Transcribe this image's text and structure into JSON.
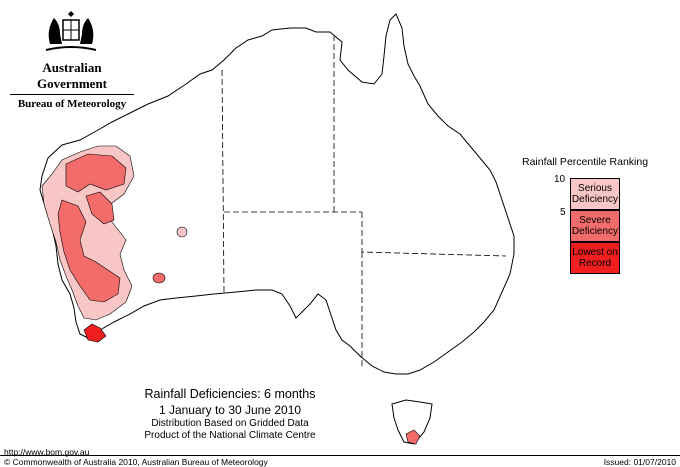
{
  "header": {
    "agency_line1": "Australian Government",
    "agency_line2": "Bureau of Meteorology"
  },
  "legend": {
    "title": "Rainfall Percentile Ranking",
    "tick_top": "10",
    "tick_mid": "5",
    "categories": [
      {
        "label_line1": "Serious",
        "label_line2": "Deficiency",
        "color": "#f9c6c6"
      },
      {
        "label_line1": "Severe",
        "label_line2": "Deficiency",
        "color": "#f26c6c"
      },
      {
        "label_line1": "Lowest on",
        "label_line2": "Record",
        "color": "#f01e1e"
      }
    ]
  },
  "caption": {
    "title": "Rainfall Deficiencies: 6 months",
    "period": "1 January to 30 June 2010",
    "line3": "Distribution Based on Gridded Data",
    "line4": "Product of the National Climate Centre"
  },
  "footer": {
    "url": "http://www.bom.gov.au",
    "copyright": "© Commonwealth of Australia 2010, Australian Bureau of Meteorology",
    "issued": "Issued: 01/07/2010"
  },
  "map": {
    "region": "Australia",
    "outline_color": "#000000",
    "border_color": "#000000",
    "colors": {
      "serious": "#f9c6c6",
      "severe": "#f26c6c",
      "lowest": "#f01e1e"
    }
  }
}
